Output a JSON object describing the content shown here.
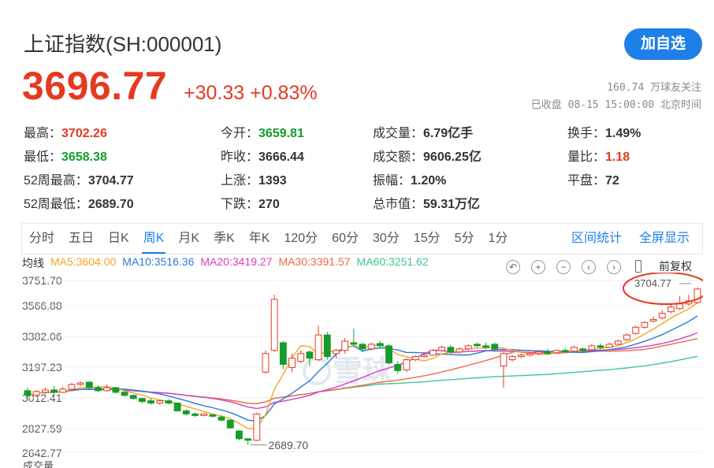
{
  "header": {
    "title": "上证指数(SH:000001)",
    "add_button": "加自选",
    "price": "3696.77",
    "change": "+30.33 +0.83%",
    "followers": "160.74 万球友关注",
    "status": "已收盘 08-15 15:00:00 北京时间"
  },
  "quote": {
    "rows": [
      [
        {
          "label": "最高：",
          "value": "3702.26",
          "color": "red"
        },
        {
          "label": "今开：",
          "value": "3659.81",
          "color": "green"
        },
        {
          "label": "成交量：",
          "value": "6.79亿手",
          "color": ""
        },
        {
          "label": "换手：",
          "value": "1.49%",
          "color": ""
        }
      ],
      [
        {
          "label": "最低：",
          "value": "3658.38",
          "color": "green"
        },
        {
          "label": "昨收：",
          "value": "3666.44",
          "color": ""
        },
        {
          "label": "成交额：",
          "value": "9606.25亿",
          "color": ""
        },
        {
          "label": "量比：",
          "value": "1.18",
          "color": "red"
        }
      ],
      [
        {
          "label": "52周最高：",
          "value": "3704.77",
          "color": ""
        },
        {
          "label": "上涨：",
          "value": "1393",
          "color": ""
        },
        {
          "label": "振幅：",
          "value": "1.20%",
          "color": ""
        },
        {
          "label": "平盘：",
          "value": "72",
          "color": ""
        }
      ],
      [
        {
          "label": "52周最低：",
          "value": "2689.70",
          "color": ""
        },
        {
          "label": "下跌：",
          "value": "270",
          "color": ""
        },
        {
          "label": "总市值：",
          "value": "59.31万亿",
          "color": ""
        },
        {
          "label": "",
          "value": "",
          "color": ""
        }
      ]
    ]
  },
  "tabs": {
    "items": [
      "分时",
      "五日",
      "日K",
      "周K",
      "月K",
      "季K",
      "年K",
      "120分",
      "60分",
      "30分",
      "15分",
      "5分",
      "1分"
    ],
    "active": 3,
    "range_stats": "区间统计",
    "fullscreen": "全屏显示"
  },
  "chart_toolbar": {
    "ma_label": "均线",
    "ma5": "MA5:3604.00",
    "ma10": "MA10:3516.36",
    "ma20": "MA20:3419.27",
    "ma30": "MA30:3391.57",
    "ma60": "MA60:3251.62",
    "adjust": "前复权",
    "icons": [
      "undo-icon",
      "zoom-in-icon",
      "zoom-out-icon",
      "pan-left-icon",
      "pan-right-icon",
      "candle-toggle-icon"
    ]
  },
  "colors": {
    "up": "#e53a20",
    "down": "#149d29",
    "ma5": "#f5a623",
    "ma10": "#2b7bd6",
    "ma20": "#d63cc4",
    "ma30": "#f06a4a",
    "ma60": "#3fc98a",
    "accent": "#1e7fe8"
  },
  "chart_data": {
    "type": "candlestick",
    "y_ticks": [
      "3751.70",
      "3566.88",
      "3382.06",
      "3197.23",
      "3012.41",
      "2827.59",
      "2642.77"
    ],
    "high_label": "3704.77",
    "low_label": "2689.70",
    "watermark": "雪球",
    "volume_label": "成交量",
    "candles": [
      [
        3040,
        3010,
        3060,
        2990
      ],
      [
        3010,
        3035,
        3045,
        3000
      ],
      [
        3030,
        3045,
        3060,
        3020
      ],
      [
        3045,
        3030,
        3070,
        3020
      ],
      [
        3030,
        3050,
        3065,
        3025
      ],
      [
        3050,
        3080,
        3090,
        3040
      ],
      [
        3080,
        3090,
        3100,
        3070
      ],
      [
        3095,
        3060,
        3100,
        3050
      ],
      [
        3060,
        3040,
        3075,
        3030
      ],
      [
        3040,
        3060,
        3080,
        3035
      ],
      [
        3060,
        3030,
        3065,
        3020
      ],
      [
        3030,
        3010,
        3040,
        3000
      ],
      [
        3010,
        2990,
        3015,
        2980
      ],
      [
        2990,
        2970,
        2995,
        2960
      ],
      [
        2975,
        2960,
        2990,
        2950
      ],
      [
        2960,
        2975,
        2980,
        2950
      ],
      [
        2975,
        2960,
        2985,
        2950
      ],
      [
        2960,
        2910,
        2965,
        2905
      ],
      [
        2910,
        2890,
        2920,
        2880
      ],
      [
        2890,
        2880,
        2900,
        2870
      ],
      [
        2880,
        2890,
        2895,
        2875
      ],
      [
        2885,
        2875,
        2890,
        2865
      ],
      [
        2870,
        2850,
        2880,
        2840
      ],
      [
        2850,
        2800,
        2855,
        2795
      ],
      [
        2780,
        2730,
        2785,
        2720
      ],
      [
        2730,
        2720,
        2735,
        2690
      ],
      [
        2720,
        2890,
        2900,
        2715
      ],
      [
        3160,
        3280,
        3300,
        3150
      ],
      [
        3300,
        3630,
        3660,
        3290
      ],
      [
        3350,
        3210,
        3360,
        3180
      ],
      [
        3190,
        3250,
        3280,
        3160
      ],
      [
        3230,
        3280,
        3300,
        3220
      ],
      [
        3290,
        3250,
        3300,
        3200
      ],
      [
        3240,
        3400,
        3460,
        3230
      ],
      [
        3400,
        3260,
        3420,
        3240
      ],
      [
        3280,
        3300,
        3310,
        3250
      ],
      [
        3300,
        3360,
        3380,
        3280
      ],
      [
        3350,
        3340,
        3440,
        3330
      ],
      [
        3340,
        3310,
        3350,
        3290
      ],
      [
        3310,
        3340,
        3350,
        3300
      ],
      [
        3345,
        3330,
        3360,
        3320
      ],
      [
        3330,
        3220,
        3340,
        3210
      ],
      [
        3210,
        3170,
        3230,
        3150
      ],
      [
        3175,
        3240,
        3250,
        3160
      ],
      [
        3240,
        3260,
        3270,
        3230
      ],
      [
        3260,
        3270,
        3290,
        3255
      ],
      [
        3270,
        3300,
        3310,
        3265
      ],
      [
        3300,
        3320,
        3330,
        3290
      ],
      [
        3320,
        3290,
        3335,
        3280
      ],
      [
        3290,
        3310,
        3320,
        3280
      ],
      [
        3310,
        3330,
        3340,
        3300
      ],
      [
        3340,
        3330,
        3350,
        3320
      ],
      [
        3330,
        3320,
        3350,
        3310
      ],
      [
        3340,
        3310,
        3350,
        3300
      ],
      [
        3200,
        3280,
        3290,
        3060
      ],
      [
        3240,
        3260,
        3270,
        3230
      ],
      [
        3260,
        3270,
        3280,
        3250
      ],
      [
        3270,
        3280,
        3290,
        3260
      ],
      [
        3280,
        3290,
        3300,
        3270
      ],
      [
        3290,
        3280,
        3310,
        3270
      ],
      [
        3285,
        3300,
        3305,
        3280
      ],
      [
        3300,
        3290,
        3315,
        3285
      ],
      [
        3295,
        3320,
        3330,
        3290
      ],
      [
        3310,
        3300,
        3320,
        3290
      ],
      [
        3305,
        3330,
        3340,
        3300
      ],
      [
        3330,
        3320,
        3345,
        3310
      ],
      [
        3320,
        3340,
        3350,
        3315
      ],
      [
        3340,
        3360,
        3370,
        3335
      ],
      [
        3370,
        3400,
        3410,
        3360
      ],
      [
        3410,
        3450,
        3460,
        3400
      ],
      [
        3450,
        3480,
        3490,
        3440
      ],
      [
        3490,
        3500,
        3520,
        3480
      ],
      [
        3510,
        3540,
        3560,
        3500
      ],
      [
        3550,
        3580,
        3600,
        3540
      ],
      [
        3570,
        3600,
        3650,
        3560
      ],
      [
        3600,
        3620,
        3660,
        3590
      ],
      [
        3610,
        3697,
        3704.77,
        3600
      ]
    ]
  }
}
